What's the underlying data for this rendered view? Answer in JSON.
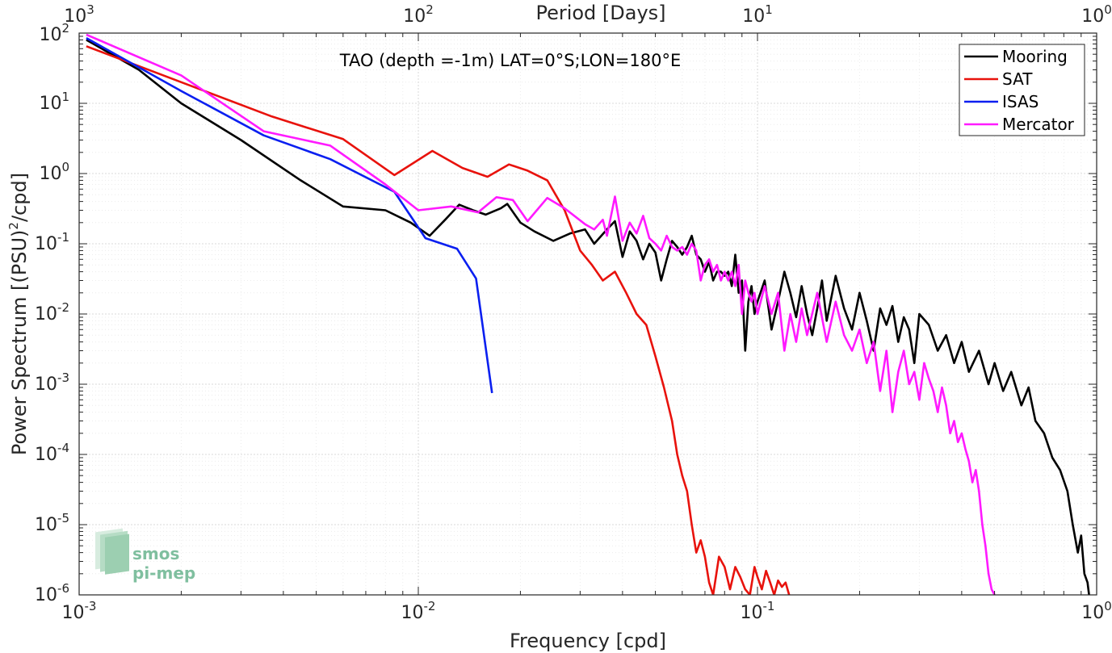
{
  "chart_data": {
    "type": "line",
    "title": "TAO (depth =-1m) LAT=0°S;LON=180°E",
    "xlabel": "Frequency [cpd]",
    "ylabel_prefix": "Power Spectrum [(PSU)",
    "ylabel_exp": "2",
    "ylabel_suffix": "/cpd]",
    "top_xlabel": "Period [Days]",
    "xscale": "log",
    "yscale": "log",
    "xlim": [
      0.001,
      1
    ],
    "ylim": [
      1e-06,
      100
    ],
    "grid": true,
    "legend_position": "top-right",
    "x_ticks": [
      {
        "base": "10",
        "exp": "-3"
      },
      {
        "base": "10",
        "exp": "-2"
      },
      {
        "base": "10",
        "exp": "-1"
      },
      {
        "base": "10",
        "exp": "0"
      }
    ],
    "y_ticks": [
      {
        "base": "10",
        "exp": "-6"
      },
      {
        "base": "10",
        "exp": "-5"
      },
      {
        "base": "10",
        "exp": "-4"
      },
      {
        "base": "10",
        "exp": "-3"
      },
      {
        "base": "10",
        "exp": "-2"
      },
      {
        "base": "10",
        "exp": "-1"
      },
      {
        "base": "10",
        "exp": "0"
      },
      {
        "base": "10",
        "exp": "1"
      },
      {
        "base": "10",
        "exp": "2"
      }
    ],
    "top_ticks": [
      {
        "base": "10",
        "exp": "3"
      },
      {
        "base": "10",
        "exp": "2"
      },
      {
        "base": "10",
        "exp": "1"
      },
      {
        "base": "10",
        "exp": "0"
      }
    ],
    "series": [
      {
        "name": "Mooring",
        "color": "#000000",
        "points": [
          [
            0.00105,
            80
          ],
          [
            0.0015,
            30
          ],
          [
            0.002,
            10
          ],
          [
            0.003,
            3
          ],
          [
            0.0045,
            0.8
          ],
          [
            0.006,
            0.34
          ],
          [
            0.008,
            0.3
          ],
          [
            0.0095,
            0.2
          ],
          [
            0.0108,
            0.13
          ],
          [
            0.012,
            0.22
          ],
          [
            0.0132,
            0.36
          ],
          [
            0.0145,
            0.3
          ],
          [
            0.0158,
            0.26
          ],
          [
            0.0175,
            0.32
          ],
          [
            0.0183,
            0.37
          ],
          [
            0.02,
            0.2
          ],
          [
            0.022,
            0.15
          ],
          [
            0.025,
            0.11
          ],
          [
            0.028,
            0.14
          ],
          [
            0.031,
            0.16
          ],
          [
            0.033,
            0.1
          ],
          [
            0.036,
            0.16
          ],
          [
            0.038,
            0.21
          ],
          [
            0.04,
            0.065
          ],
          [
            0.042,
            0.15
          ],
          [
            0.044,
            0.11
          ],
          [
            0.046,
            0.06
          ],
          [
            0.048,
            0.1
          ],
          [
            0.05,
            0.075
          ],
          [
            0.052,
            0.03
          ],
          [
            0.054,
            0.06
          ],
          [
            0.056,
            0.11
          ],
          [
            0.058,
            0.09
          ],
          [
            0.06,
            0.07
          ],
          [
            0.062,
            0.09
          ],
          [
            0.064,
            0.13
          ],
          [
            0.066,
            0.07
          ],
          [
            0.068,
            0.06
          ],
          [
            0.07,
            0.04
          ],
          [
            0.072,
            0.055
          ],
          [
            0.074,
            0.03
          ],
          [
            0.076,
            0.04
          ],
          [
            0.078,
            0.04
          ],
          [
            0.08,
            0.035
          ],
          [
            0.082,
            0.04
          ],
          [
            0.084,
            0.025
          ],
          [
            0.086,
            0.07
          ],
          [
            0.088,
            0.02
          ],
          [
            0.09,
            0.03
          ],
          [
            0.092,
            0.003
          ],
          [
            0.094,
            0.015
          ],
          [
            0.096,
            0.025
          ],
          [
            0.098,
            0.01
          ],
          [
            0.1,
            0.015
          ],
          [
            0.105,
            0.03
          ],
          [
            0.11,
            0.006
          ],
          [
            0.115,
            0.015
          ],
          [
            0.12,
            0.04
          ],
          [
            0.125,
            0.02
          ],
          [
            0.13,
            0.009
          ],
          [
            0.135,
            0.025
          ],
          [
            0.14,
            0.01
          ],
          [
            0.145,
            0.005
          ],
          [
            0.15,
            0.012
          ],
          [
            0.155,
            0.03
          ],
          [
            0.16,
            0.008
          ],
          [
            0.17,
            0.035
          ],
          [
            0.18,
            0.012
          ],
          [
            0.19,
            0.006
          ],
          [
            0.2,
            0.02
          ],
          [
            0.21,
            0.008
          ],
          [
            0.22,
            0.003
          ],
          [
            0.23,
            0.012
          ],
          [
            0.24,
            0.007
          ],
          [
            0.25,
            0.013
          ],
          [
            0.26,
            0.004
          ],
          [
            0.27,
            0.009
          ],
          [
            0.28,
            0.006
          ],
          [
            0.29,
            0.002
          ],
          [
            0.3,
            0.01
          ],
          [
            0.32,
            0.007
          ],
          [
            0.34,
            0.003
          ],
          [
            0.36,
            0.005
          ],
          [
            0.38,
            0.002
          ],
          [
            0.4,
            0.004
          ],
          [
            0.42,
            0.0015
          ],
          [
            0.45,
            0.003
          ],
          [
            0.48,
            0.001
          ],
          [
            0.5,
            0.002
          ],
          [
            0.53,
            0.0008
          ],
          [
            0.56,
            0.0015
          ],
          [
            0.6,
            0.0005
          ],
          [
            0.63,
            0.0009
          ],
          [
            0.66,
            0.0003
          ],
          [
            0.7,
            0.0002
          ],
          [
            0.74,
            9e-05
          ],
          [
            0.78,
            6e-05
          ],
          [
            0.82,
            3e-05
          ],
          [
            0.85,
            1e-05
          ],
          [
            0.88,
            4e-06
          ],
          [
            0.9,
            7e-06
          ],
          [
            0.92,
            2e-06
          ],
          [
            0.94,
            1.5e-06
          ],
          [
            0.95,
            1e-06
          ]
        ]
      },
      {
        "name": "SAT",
        "color": "#e8120c",
        "points": [
          [
            0.00105,
            65
          ],
          [
            0.002,
            20
          ],
          [
            0.0037,
            6.5
          ],
          [
            0.006,
            3.1
          ],
          [
            0.0085,
            0.95
          ],
          [
            0.011,
            2.1
          ],
          [
            0.0135,
            1.2
          ],
          [
            0.016,
            0.9
          ],
          [
            0.0185,
            1.35
          ],
          [
            0.021,
            1.1
          ],
          [
            0.024,
            0.8
          ],
          [
            0.027,
            0.3
          ],
          [
            0.03,
            0.08
          ],
          [
            0.0325,
            0.05
          ],
          [
            0.035,
            0.03
          ],
          [
            0.038,
            0.04
          ],
          [
            0.041,
            0.02
          ],
          [
            0.044,
            0.01
          ],
          [
            0.047,
            0.007
          ],
          [
            0.05,
            0.0025
          ],
          [
            0.053,
            0.0009
          ],
          [
            0.056,
            0.0003
          ],
          [
            0.058,
            0.0001
          ],
          [
            0.06,
            5e-05
          ],
          [
            0.062,
            3e-05
          ],
          [
            0.064,
            1e-05
          ],
          [
            0.066,
            4e-06
          ],
          [
            0.068,
            6e-06
          ],
          [
            0.07,
            3.5e-06
          ],
          [
            0.072,
            1.5e-06
          ],
          [
            0.074,
            1e-06
          ],
          [
            0.077,
            3.5e-06
          ],
          [
            0.08,
            2.5e-06
          ],
          [
            0.083,
            1.2e-06
          ],
          [
            0.086,
            2.5e-06
          ],
          [
            0.089,
            1.8e-06
          ],
          [
            0.092,
            1.2e-06
          ],
          [
            0.095,
            1e-06
          ],
          [
            0.098,
            2.5e-06
          ],
          [
            0.1,
            1.8e-06
          ],
          [
            0.103,
            1.2e-06
          ],
          [
            0.106,
            2.2e-06
          ],
          [
            0.109,
            1.5e-06
          ],
          [
            0.112,
            1e-06
          ],
          [
            0.115,
            1.6e-06
          ],
          [
            0.118,
            1.3e-06
          ],
          [
            0.121,
            1.5e-06
          ],
          [
            0.124,
            1e-06
          ]
        ]
      },
      {
        "name": "ISAS",
        "color": "#0a1ff0",
        "points": [
          [
            0.00105,
            85
          ],
          [
            0.002,
            15
          ],
          [
            0.0035,
            3.5
          ],
          [
            0.0055,
            1.6
          ],
          [
            0.0085,
            0.55
          ],
          [
            0.0105,
            0.12
          ],
          [
            0.013,
            0.085
          ],
          [
            0.0148,
            0.032
          ],
          [
            0.0165,
            0.00075
          ]
        ]
      },
      {
        "name": "Mercator",
        "color": "#ff1aff",
        "points": [
          [
            0.00105,
            95
          ],
          [
            0.002,
            25
          ],
          [
            0.0035,
            4
          ],
          [
            0.0055,
            2.5
          ],
          [
            0.008,
            0.7
          ],
          [
            0.01,
            0.3
          ],
          [
            0.0125,
            0.34
          ],
          [
            0.015,
            0.28
          ],
          [
            0.017,
            0.46
          ],
          [
            0.019,
            0.42
          ],
          [
            0.021,
            0.21
          ],
          [
            0.024,
            0.45
          ],
          [
            0.027,
            0.32
          ],
          [
            0.031,
            0.19
          ],
          [
            0.033,
            0.16
          ],
          [
            0.035,
            0.22
          ],
          [
            0.036,
            0.13
          ],
          [
            0.038,
            0.47
          ],
          [
            0.04,
            0.11
          ],
          [
            0.042,
            0.2
          ],
          [
            0.044,
            0.14
          ],
          [
            0.046,
            0.25
          ],
          [
            0.048,
            0.12
          ],
          [
            0.05,
            0.1
          ],
          [
            0.052,
            0.08
          ],
          [
            0.054,
            0.13
          ],
          [
            0.056,
            0.09
          ],
          [
            0.058,
            0.08
          ],
          [
            0.06,
            0.09
          ],
          [
            0.062,
            0.07
          ],
          [
            0.064,
            0.1
          ],
          [
            0.066,
            0.08
          ],
          [
            0.068,
            0.03
          ],
          [
            0.07,
            0.05
          ],
          [
            0.072,
            0.06
          ],
          [
            0.074,
            0.04
          ],
          [
            0.076,
            0.05
          ],
          [
            0.078,
            0.03
          ],
          [
            0.08,
            0.04
          ],
          [
            0.082,
            0.03
          ],
          [
            0.084,
            0.04
          ],
          [
            0.086,
            0.025
          ],
          [
            0.088,
            0.05
          ],
          [
            0.09,
            0.01
          ],
          [
            0.092,
            0.03
          ],
          [
            0.094,
            0.02
          ],
          [
            0.096,
            0.015
          ],
          [
            0.098,
            0.02
          ],
          [
            0.1,
            0.01
          ],
          [
            0.105,
            0.025
          ],
          [
            0.11,
            0.01
          ],
          [
            0.115,
            0.02
          ],
          [
            0.12,
            0.003
          ],
          [
            0.125,
            0.01
          ],
          [
            0.13,
            0.004
          ],
          [
            0.135,
            0.012
          ],
          [
            0.14,
            0.005
          ],
          [
            0.15,
            0.02
          ],
          [
            0.16,
            0.004
          ],
          [
            0.17,
            0.015
          ],
          [
            0.18,
            0.005
          ],
          [
            0.19,
            0.003
          ],
          [
            0.2,
            0.006
          ],
          [
            0.21,
            0.002
          ],
          [
            0.22,
            0.004
          ],
          [
            0.23,
            0.0008
          ],
          [
            0.24,
            0.003
          ],
          [
            0.25,
            0.0004
          ],
          [
            0.26,
            0.0015
          ],
          [
            0.27,
            0.003
          ],
          [
            0.28,
            0.001
          ],
          [
            0.29,
            0.0015
          ],
          [
            0.3,
            0.0006
          ],
          [
            0.31,
            0.002
          ],
          [
            0.32,
            0.0012
          ],
          [
            0.33,
            0.0008
          ],
          [
            0.34,
            0.0004
          ],
          [
            0.35,
            0.0009
          ],
          [
            0.36,
            0.0005
          ],
          [
            0.37,
            0.0002
          ],
          [
            0.38,
            0.0003
          ],
          [
            0.39,
            0.00015
          ],
          [
            0.4,
            0.0002
          ],
          [
            0.41,
            0.00012
          ],
          [
            0.42,
            8e-05
          ],
          [
            0.43,
            4e-05
          ],
          [
            0.44,
            6e-05
          ],
          [
            0.45,
            3e-05
          ],
          [
            0.46,
            1e-05
          ],
          [
            0.47,
            5e-06
          ],
          [
            0.48,
            2e-06
          ],
          [
            0.49,
            1.2e-06
          ],
          [
            0.5,
            1e-06
          ]
        ]
      }
    ]
  }
}
